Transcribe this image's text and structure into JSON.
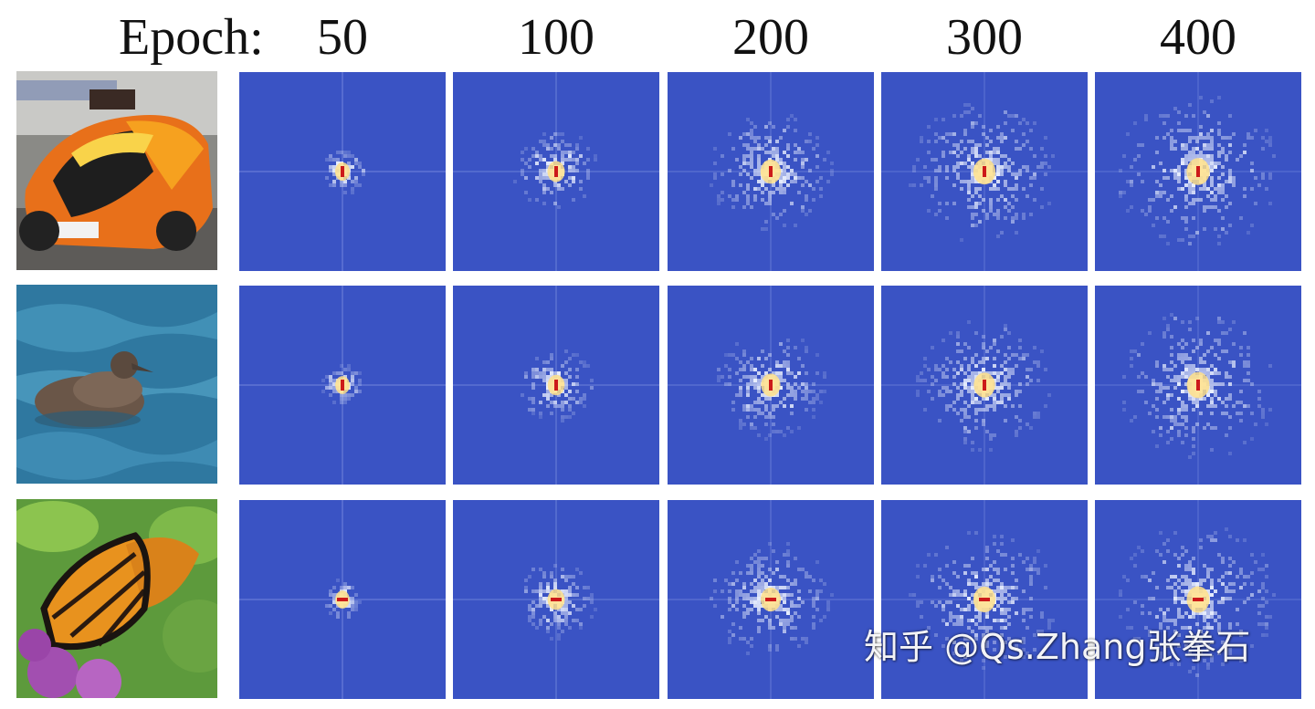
{
  "header": {
    "epoch_label": "Epoch:",
    "epochs": [
      "50",
      "100",
      "200",
      "300",
      "400"
    ]
  },
  "rows": [
    {
      "subject": "race car",
      "spread": [
        0.18,
        0.42,
        0.7,
        0.86,
        0.95
      ]
    },
    {
      "subject": "bird on water",
      "spread": [
        0.15,
        0.38,
        0.6,
        0.78,
        0.9
      ]
    },
    {
      "subject": "monarch butterfly",
      "spread": [
        0.14,
        0.4,
        0.68,
        0.85,
        0.92
      ]
    }
  ],
  "colors": {
    "background": "#3a53c4",
    "core": "#cc1a1a",
    "glow": "#ffe08a",
    "halo": "#eef3ff"
  },
  "watermark": "知乎 @Qs.Zhang张拳石"
}
